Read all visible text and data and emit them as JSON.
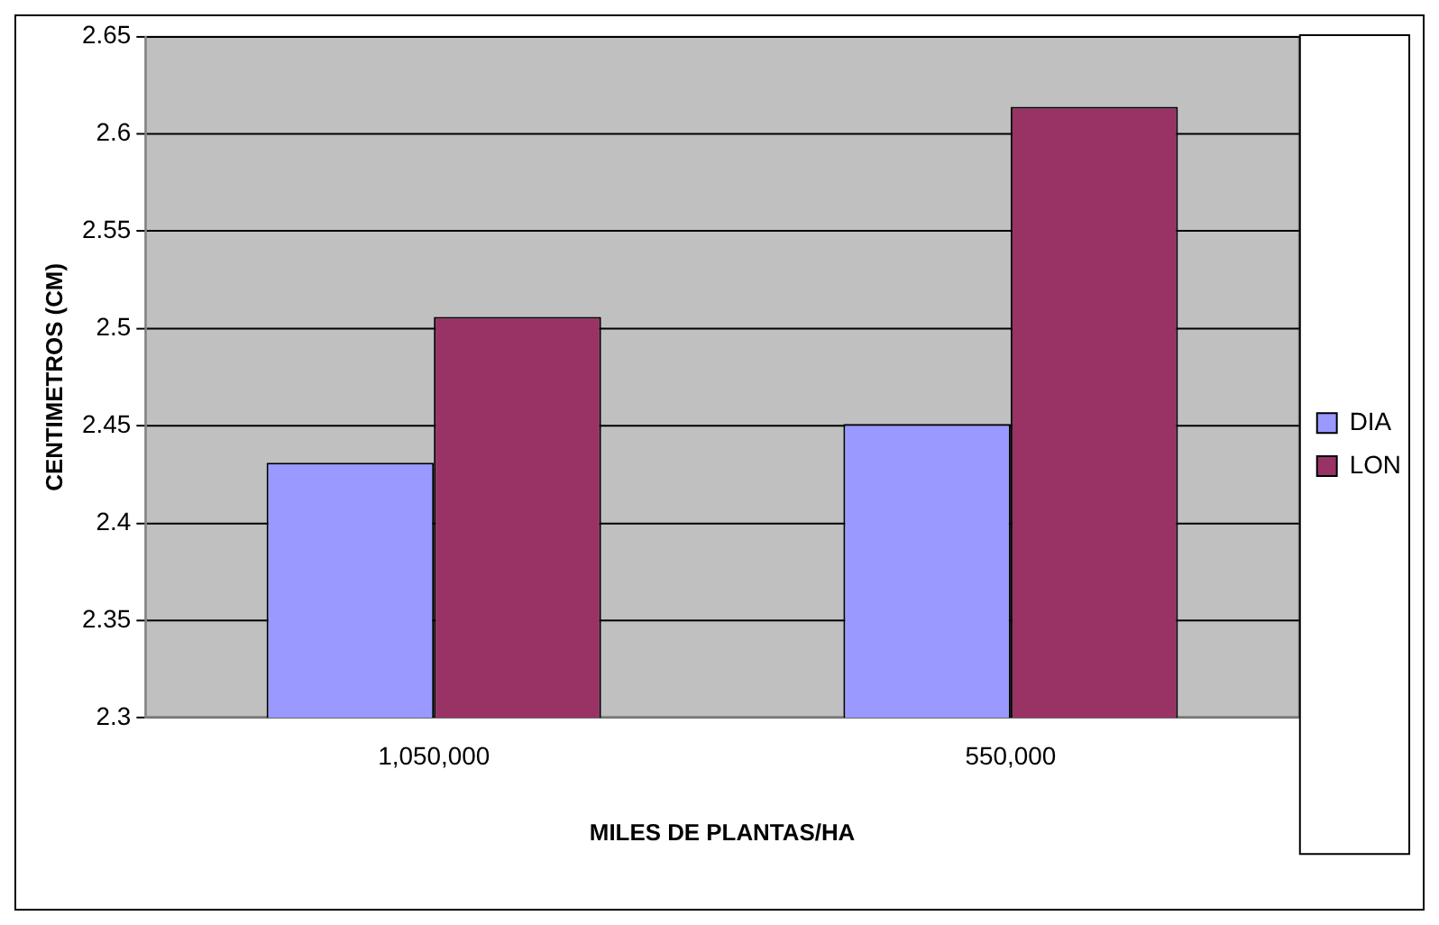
{
  "chart_data": {
    "type": "bar",
    "xlabel": "MILES DE PLANTAS/HA",
    "ylabel": "CENTIMETROS (CM)",
    "categories": [
      "1,050,000",
      "550,000"
    ],
    "series": [
      {
        "name": "DIA",
        "color": "#9999ff",
        "values": [
          2.431,
          2.451
        ]
      },
      {
        "name": "LON",
        "color": "#993366",
        "values": [
          2.506,
          2.614
        ]
      }
    ],
    "ylim": [
      2.3,
      2.65
    ],
    "yticks": [
      2.3,
      2.35,
      2.4,
      2.45,
      2.5,
      2.55,
      2.6,
      2.65
    ],
    "grid": "y",
    "legend": "right"
  }
}
